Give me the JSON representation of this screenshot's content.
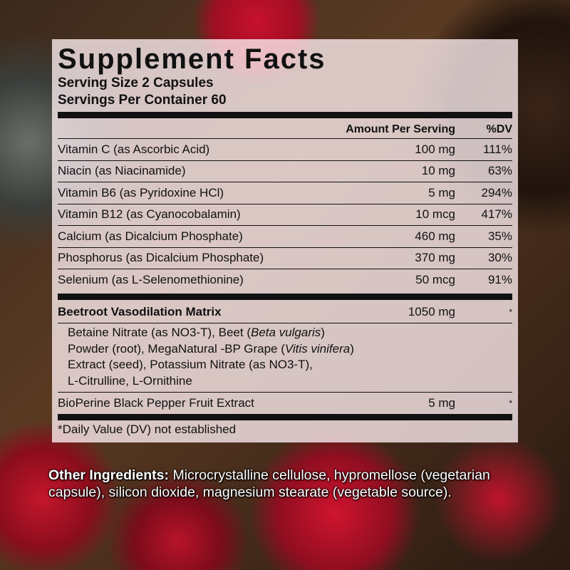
{
  "label": {
    "title": "Supplement Facts",
    "serving_size": "Serving Size 2 Capsules",
    "servings_per_container": "Servings Per Container 60",
    "header": {
      "amount": "Amount Per Serving",
      "dv": "%DV"
    },
    "nutrients": [
      {
        "name": "Vitamin C (as Ascorbic Acid)",
        "amount": "100 mg",
        "dv": "111%"
      },
      {
        "name": "Niacin (as Niacinamide)",
        "amount": "10 mg",
        "dv": "63%"
      },
      {
        "name": "Vitamin B6 (as Pyridoxine HCl)",
        "amount": "5 mg",
        "dv": "294%"
      },
      {
        "name": "Vitamin B12 (as Cyanocobalamin)",
        "amount": "10 mcg",
        "dv": "417%"
      },
      {
        "name": "Calcium (as Dicalcium Phosphate)",
        "amount": "460 mg",
        "dv": "35%"
      },
      {
        "name": "Phosphorus (as Dicalcium Phosphate)",
        "amount": "370 mg",
        "dv": "30%"
      },
      {
        "name": "Selenium (as L-Selenomethionine)",
        "amount": "50 mcg",
        "dv": "91%"
      }
    ],
    "matrix": {
      "name": "Beetroot Vasodilation Matrix",
      "amount": "1050 mg",
      "dv": "*",
      "ingredients_parts": [
        "Betaine Nitrate (as NO3-T), Beet (",
        "Beta vulgaris",
        ")",
        "Powder (root), MegaNatural -BP Grape (",
        "Vitis vinifera",
        ")",
        "Extract (seed), Potassium Nitrate (as NO3-T),",
        "L-Citrulline, L-Ornithine"
      ]
    },
    "bioperine": {
      "name": "BioPerine Black Pepper Fruit Extract",
      "amount": "5 mg",
      "dv": "*"
    },
    "footnote": "*Daily Value (DV) not established"
  },
  "other_ingredients": {
    "label": "Other Ingredients:",
    "text": " Microcrystalline cellulose, hypromellose (vegetarian capsule), silicon dioxide, magnesium stearate (vegetable source)."
  }
}
